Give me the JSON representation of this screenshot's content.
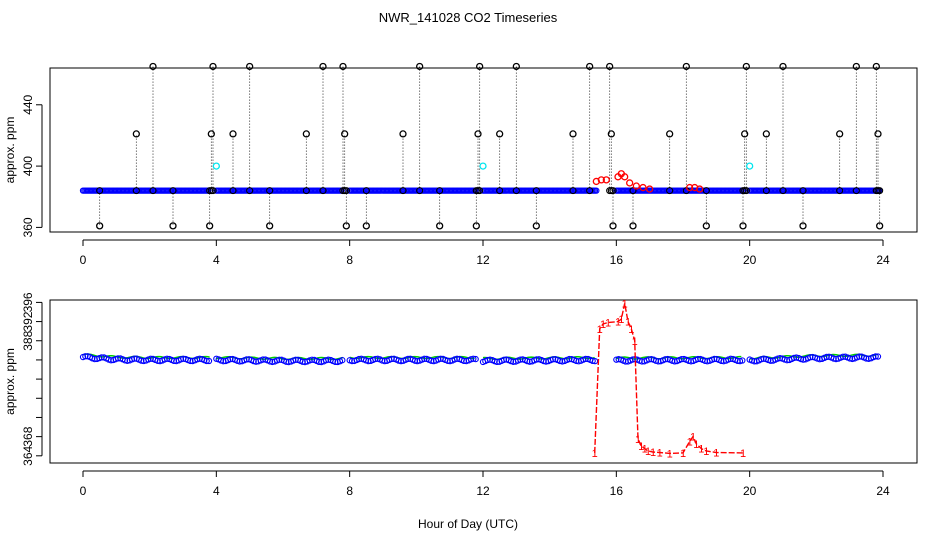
{
  "title": "NWR_141028  CO2 Timeseries",
  "xlabel": "Hour of Day (UTC)",
  "colors": {
    "black": "#000000",
    "blue": "#0000ff",
    "green": "#00cc00",
    "red": "#ff0000",
    "cyan": "#00e5ee"
  },
  "chart_data": [
    {
      "type": "scatter",
      "ylabel": "approx. ppm",
      "xlim": [
        0,
        24
      ],
      "ylim": [
        357,
        464
      ],
      "xticks": [
        0,
        4,
        8,
        12,
        16,
        20,
        24
      ],
      "yticks": [
        360,
        400,
        440
      ],
      "baseline": 384,
      "series": [
        {
          "color": "#0000ff",
          "marker": "circle",
          "segments": [
            [
              0,
              3.8
            ],
            [
              4.0,
              7.8
            ],
            [
              8.0,
              11.8
            ],
            [
              12.0,
              15.4
            ],
            [
              16.0,
              19.8
            ],
            [
              20.0,
              23.9
            ]
          ],
          "y": 384
        },
        {
          "color": "#000000",
          "marker": "circle",
          "spikes": [
            [
              0.5,
              361
            ],
            [
              1.6,
              421
            ],
            [
              2.1,
              465
            ],
            [
              2.7,
              361
            ],
            [
              3.8,
              361
            ],
            [
              3.85,
              421
            ],
            [
              3.9,
              465
            ],
            [
              4.5,
              421
            ],
            [
              5.0,
              465
            ],
            [
              5.6,
              361
            ],
            [
              6.7,
              421
            ],
            [
              7.2,
              465
            ],
            [
              7.8,
              465
            ],
            [
              7.85,
              421
            ],
            [
              7.9,
              361
            ],
            [
              8.5,
              361
            ],
            [
              9.6,
              421
            ],
            [
              10.1,
              465
            ],
            [
              10.7,
              361
            ],
            [
              11.8,
              361
            ],
            [
              11.85,
              421
            ],
            [
              11.9,
              465
            ],
            [
              12.5,
              421
            ],
            [
              13.0,
              465
            ],
            [
              13.6,
              361
            ],
            [
              14.7,
              421
            ],
            [
              15.2,
              465
            ],
            [
              15.8,
              465
            ],
            [
              15.85,
              421
            ],
            [
              15.9,
              361
            ],
            [
              16.5,
              361
            ],
            [
              17.6,
              421
            ],
            [
              18.1,
              465
            ],
            [
              18.7,
              361
            ],
            [
              19.8,
              361
            ],
            [
              19.85,
              421
            ],
            [
              19.9,
              465
            ],
            [
              20.5,
              421
            ],
            [
              21.0,
              465
            ],
            [
              21.6,
              361
            ],
            [
              22.7,
              421
            ],
            [
              23.2,
              465
            ],
            [
              23.8,
              465
            ],
            [
              23.85,
              421
            ],
            [
              23.9,
              361
            ]
          ]
        },
        {
          "color": "#00e5ee",
          "marker": "circle",
          "points": [
            [
              4.0,
              400
            ],
            [
              12.0,
              400
            ],
            [
              20.0,
              400
            ]
          ]
        },
        {
          "color": "#ff0000",
          "marker": "circle",
          "points": [
            [
              15.4,
              390
            ],
            [
              15.55,
              391
            ],
            [
              15.7,
              391
            ],
            [
              16.05,
              393
            ],
            [
              16.15,
              395
            ],
            [
              16.25,
              393
            ],
            [
              16.4,
              389
            ],
            [
              16.6,
              387
            ],
            [
              16.8,
              386
            ],
            [
              17.0,
              385
            ],
            [
              18.2,
              386
            ],
            [
              18.35,
              386
            ],
            [
              18.5,
              385
            ]
          ]
        }
      ]
    },
    {
      "type": "line",
      "ylabel": "approx. ppm",
      "xlim": [
        0,
        24
      ],
      "ylim": [
        362.5,
        396.5
      ],
      "xticks": [
        0,
        4,
        8,
        12,
        16,
        20,
        24
      ],
      "yticks": [
        364,
        368,
        372,
        376,
        380,
        384,
        388,
        392,
        396
      ],
      "ytick_labels": [
        "364",
        "368",
        "",
        "",
        "",
        "",
        "388",
        "392",
        "396"
      ],
      "segments": [
        [
          0,
          3.8
        ],
        [
          4.0,
          7.8
        ],
        [
          8.0,
          11.8
        ],
        [
          12.0,
          15.4
        ],
        [
          16.0,
          19.8
        ],
        [
          20.0,
          23.9
        ]
      ],
      "series": [
        {
          "color": "#00cc00",
          "marker": "line",
          "offset": 0.5
        },
        {
          "color": "#0000ff",
          "marker": "circle",
          "offset": 0
        },
        {
          "color": "#ff0000",
          "marker": "1",
          "points": [
            [
              15.35,
              364.6
            ],
            [
              15.5,
              390.5
            ],
            [
              15.6,
              391.5
            ],
            [
              15.75,
              391.8
            ],
            [
              16.05,
              392.0
            ],
            [
              16.15,
              392.5
            ],
            [
              16.25,
              395.8
            ],
            [
              16.35,
              392.0
            ],
            [
              16.45,
              390.5
            ],
            [
              16.55,
              388.0
            ],
            [
              16.65,
              367.5
            ],
            [
              16.75,
              366.0
            ],
            [
              16.85,
              365.5
            ],
            [
              16.95,
              365.0
            ],
            [
              17.1,
              364.8
            ],
            [
              17.3,
              364.7
            ],
            [
              17.6,
              364.5
            ],
            [
              18.0,
              364.6
            ],
            [
              18.2,
              367.0
            ],
            [
              18.3,
              368.0
            ],
            [
              18.4,
              366.5
            ],
            [
              18.55,
              365.5
            ],
            [
              18.7,
              365.0
            ],
            [
              19.0,
              364.7
            ],
            [
              19.8,
              364.6
            ]
          ]
        }
      ],
      "base_curve": [
        [
          0,
          384.6
        ],
        [
          1.0,
          384.1
        ],
        [
          2.0,
          384.0
        ],
        [
          3.8,
          384.0
        ],
        [
          4.0,
          384.0
        ],
        [
          6.0,
          383.8
        ],
        [
          7.8,
          383.8
        ],
        [
          8.0,
          384.0
        ],
        [
          10.0,
          384.0
        ],
        [
          11.8,
          384.0
        ],
        [
          12.0,
          383.8
        ],
        [
          15.4,
          384.0
        ],
        [
          16.0,
          383.9
        ],
        [
          19.8,
          384.0
        ],
        [
          20.0,
          383.9
        ],
        [
          22.0,
          384.4
        ],
        [
          23.9,
          384.5
        ]
      ]
    }
  ]
}
